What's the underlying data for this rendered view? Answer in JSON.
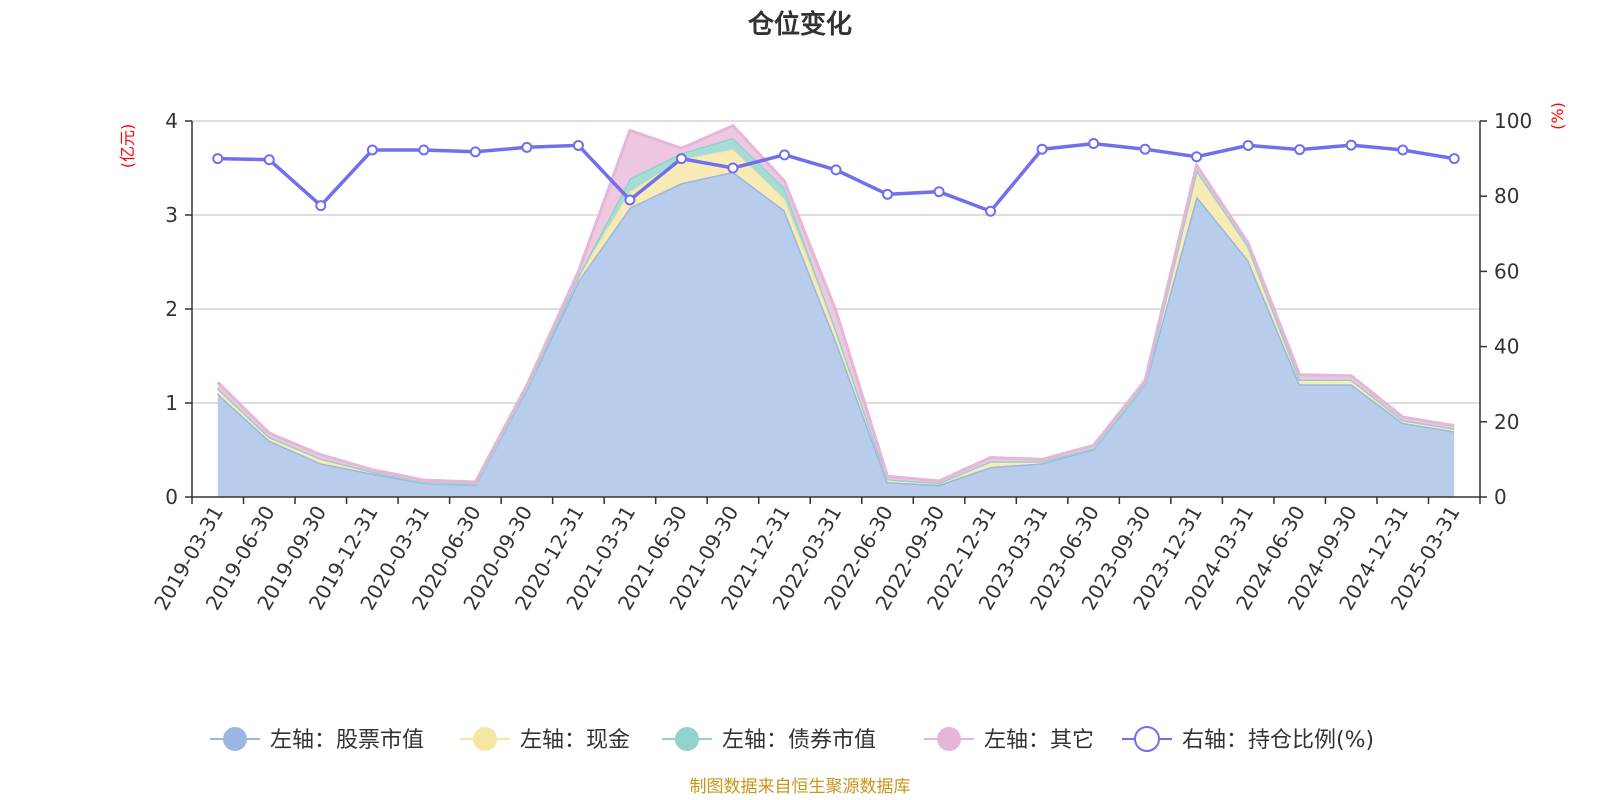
{
  "chart_data": {
    "type": "area",
    "title": "仓位变化",
    "left_axis_unit": "(亿元)",
    "right_axis_unit": "(%)",
    "x": [
      "2019-03-31",
      "2019-06-30",
      "2019-09-30",
      "2019-12-31",
      "2020-03-31",
      "2020-06-30",
      "2020-09-30",
      "2020-12-31",
      "2021-03-31",
      "2021-06-30",
      "2021-09-30",
      "2021-12-31",
      "2022-03-31",
      "2022-06-30",
      "2022-09-30",
      "2022-12-31",
      "2023-03-31",
      "2023-06-30",
      "2023-09-30",
      "2023-12-31",
      "2024-03-31",
      "2024-06-30",
      "2024-09-30",
      "2024-12-31",
      "2025-03-31"
    ],
    "ylim_left": [
      0,
      4
    ],
    "yticks_left": [
      0,
      1,
      2,
      3,
      4
    ],
    "ylim_right": [
      0,
      100
    ],
    "yticks_right": [
      0,
      20,
      40,
      60,
      80,
      100
    ],
    "grid": true,
    "legend_position": "bottom",
    "series": [
      {
        "name": "左轴：股票市值",
        "axis": "left",
        "color": "#9bb6e0",
        "fill": "#b8cdec",
        "values": [
          1.1,
          0.6,
          0.36,
          0.25,
          0.15,
          0.13,
          1.15,
          2.3,
          3.08,
          3.34,
          3.46,
          3.05,
          1.66,
          0.16,
          0.13,
          0.32,
          0.36,
          0.51,
          1.2,
          3.2,
          2.52,
          1.2,
          1.2,
          0.79,
          0.7
        ]
      },
      {
        "name": "左轴：现金",
        "axis": "left",
        "color": "#f5e6a3",
        "fill": "#f9ebb5",
        "values": [
          0.06,
          0.04,
          0.05,
          0.02,
          0.01,
          0.01,
          0.02,
          0.05,
          0.17,
          0.25,
          0.24,
          0.12,
          0.12,
          0.03,
          0.02,
          0.06,
          0.02,
          0.01,
          0.01,
          0.28,
          0.15,
          0.05,
          0.05,
          0.03,
          0.03
        ]
      },
      {
        "name": "左轴：债券市值",
        "axis": "left",
        "color": "#92d2ce",
        "fill": "#a6dcd5",
        "values": [
          0,
          0,
          0,
          0,
          0,
          0,
          0,
          0,
          0.14,
          0.07,
          0.12,
          0.12,
          0,
          0,
          0,
          0,
          0,
          0,
          0,
          0,
          0,
          0,
          0,
          0,
          0
        ]
      },
      {
        "name": "左轴：其它",
        "axis": "left",
        "color": "#e6b5d8",
        "fill": "#edc8e0",
        "values": [
          0.06,
          0.04,
          0.04,
          0.02,
          0.02,
          0.02,
          0.02,
          0.05,
          0.51,
          0.05,
          0.13,
          0.07,
          0.2,
          0.03,
          0.02,
          0.04,
          0.02,
          0.03,
          0.03,
          0.05,
          0.03,
          0.05,
          0.04,
          0.03,
          0.03
        ]
      },
      {
        "name": "右轴：持仓比例(%)",
        "axis": "right",
        "color": "#7070ee",
        "values": [
          90,
          89.7,
          77.5,
          92.3,
          92.3,
          91.8,
          93,
          93.5,
          79,
          90,
          87.5,
          91,
          87,
          80.5,
          81.2,
          76,
          92.5,
          94,
          92.5,
          90.5,
          93.5,
          92.4,
          93.6,
          92.3,
          90
        ]
      }
    ]
  },
  "source": "制图数据来自恒生聚源数据库"
}
